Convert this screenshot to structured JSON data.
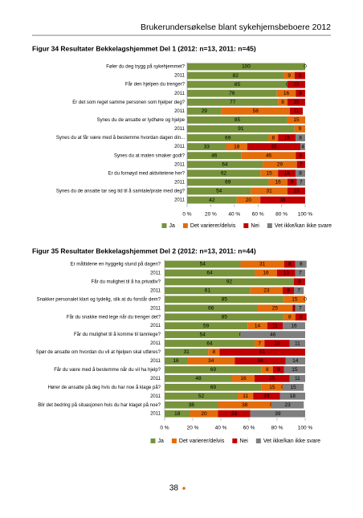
{
  "header": "Brukerundersøkelse blant sykehjemsbeboere 2012",
  "page_number": "38",
  "chart_data": [
    {
      "type": "stacked-barh",
      "title": "Figur 34 Resultater Bekkelagshjemmet Del 1 (2012: n=13, 2011: n=45)",
      "categories": [
        "Føler du deg trygg på sykehjemmet?",
        "2011",
        "Får den hjelpen du trenger?",
        "2011",
        "Er det som regel samme personen som hjelper deg?",
        "2011",
        "Synes du de ansatte er lydhøre og hjelpe",
        "2011",
        "Synes du at får være med å bestemme hvordan dagen din...",
        "2011",
        "Synes du at maten smaker godt?",
        "2011",
        "Er du fornøyd med aktivitetene her?",
        "2011",
        "Synes du de ansatte tar seg tid til å samtale/prate med deg?",
        "2011"
      ],
      "series": [
        {
          "name": "Ja",
          "color": "#77933c",
          "values": [
            100,
            82,
            85,
            76,
            77,
            29,
            85,
            91,
            69,
            33,
            46,
            64,
            62,
            69,
            54,
            42
          ]
        },
        {
          "name": "Det varierer/delvis",
          "color": "#e46c0a",
          "values": [
            null,
            9,
            0,
            16,
            8,
            58,
            15,
            9,
            8,
            18,
            46,
            29,
            15,
            16,
            31,
            20
          ]
        },
        {
          "name": "Nei",
          "color": "#c00000",
          "values": [
            null,
            9,
            15,
            8,
            15,
            11,
            null,
            null,
            15,
            45,
            8,
            7,
            15,
            8,
            15,
            38
          ]
        },
        {
          "name": "Vet ikke/kan ikke svare",
          "color": "#7f7f7f",
          "values": [
            0,
            null,
            null,
            null,
            null,
            null,
            null,
            null,
            8,
            4,
            null,
            null,
            8,
            7,
            null,
            null
          ]
        }
      ],
      "xlim": [
        0,
        100
      ],
      "xticks": [
        {
          "value": 0,
          "label": "0 %"
        },
        {
          "value": 20,
          "label": "20 %"
        },
        {
          "value": 40,
          "label": "40 %"
        },
        {
          "value": 60,
          "label": "60 %"
        },
        {
          "value": 80,
          "label": "80 %"
        },
        {
          "value": 100,
          "label": "100 %"
        }
      ]
    },
    {
      "type": "stacked-barh",
      "title": "Figur 35 Resultater Bekkelagshjemmet Del 2 (2012: n=13, 2011: n=44)",
      "categories": [
        "Er måltidene en hyggelig stund på dagen?",
        "2011",
        "Får du mulighet til å ha privatliv?",
        "2011",
        "Snakker personalet klart og tydelig, slik at du forstår dem?",
        "2011",
        "Får du snakke med lege når du trenger det?",
        "2011",
        "Får du mulighet til å komme til tannlege?",
        "2011",
        "Spør de ansatte om hvordan du vil at hjelpen skal utføres?",
        "2011",
        "Får du være med å bestemme når du vil ha hjelp?",
        "2011",
        "Hører de ansatte på deg hvis du har noe å klage på?",
        "2011",
        "Blir det bedring på situasjonen hvis du har klaget på noe?",
        "2011"
      ],
      "series": [
        {
          "name": "Ja",
          "color": "#77933c",
          "values": [
            54,
            64,
            92,
            61,
            85,
            66,
            85,
            59,
            54,
            64,
            31,
            16,
            69,
            48,
            69,
            52,
            38,
            18
          ]
        },
        {
          "name": "Det varierer/delvis",
          "color": "#e46c0a",
          "values": [
            31,
            16,
            null,
            23,
            15,
            25,
            8,
            14,
            null,
            7,
            8,
            34,
            8,
            16,
            15,
            11,
            38,
            20
          ]
        },
        {
          "name": "Nei",
          "color": "#c00000",
          "values": [
            8,
            13,
            8,
            8,
            0,
            2,
            8,
            11,
            0,
            18,
            61,
            36,
            8,
            25,
            0,
            19,
            0,
            23
          ]
        },
        {
          "name": "Vet ikke/kan ikke svare",
          "color": "#7f7f7f",
          "values": [
            8,
            7,
            null,
            7,
            null,
            7,
            null,
            16,
            46,
            11,
            null,
            14,
            15,
            11,
            15,
            18,
            23,
            39
          ]
        }
      ],
      "xlim": [
        0,
        100
      ],
      "xticks": [
        {
          "value": 0,
          "label": "0 %"
        },
        {
          "value": 20,
          "label": "20 %"
        },
        {
          "value": 40,
          "label": "40 %"
        },
        {
          "value": 60,
          "label": "60 %"
        },
        {
          "value": 80,
          "label": "80 %"
        },
        {
          "value": 100,
          "label": "100 %"
        }
      ]
    }
  ]
}
